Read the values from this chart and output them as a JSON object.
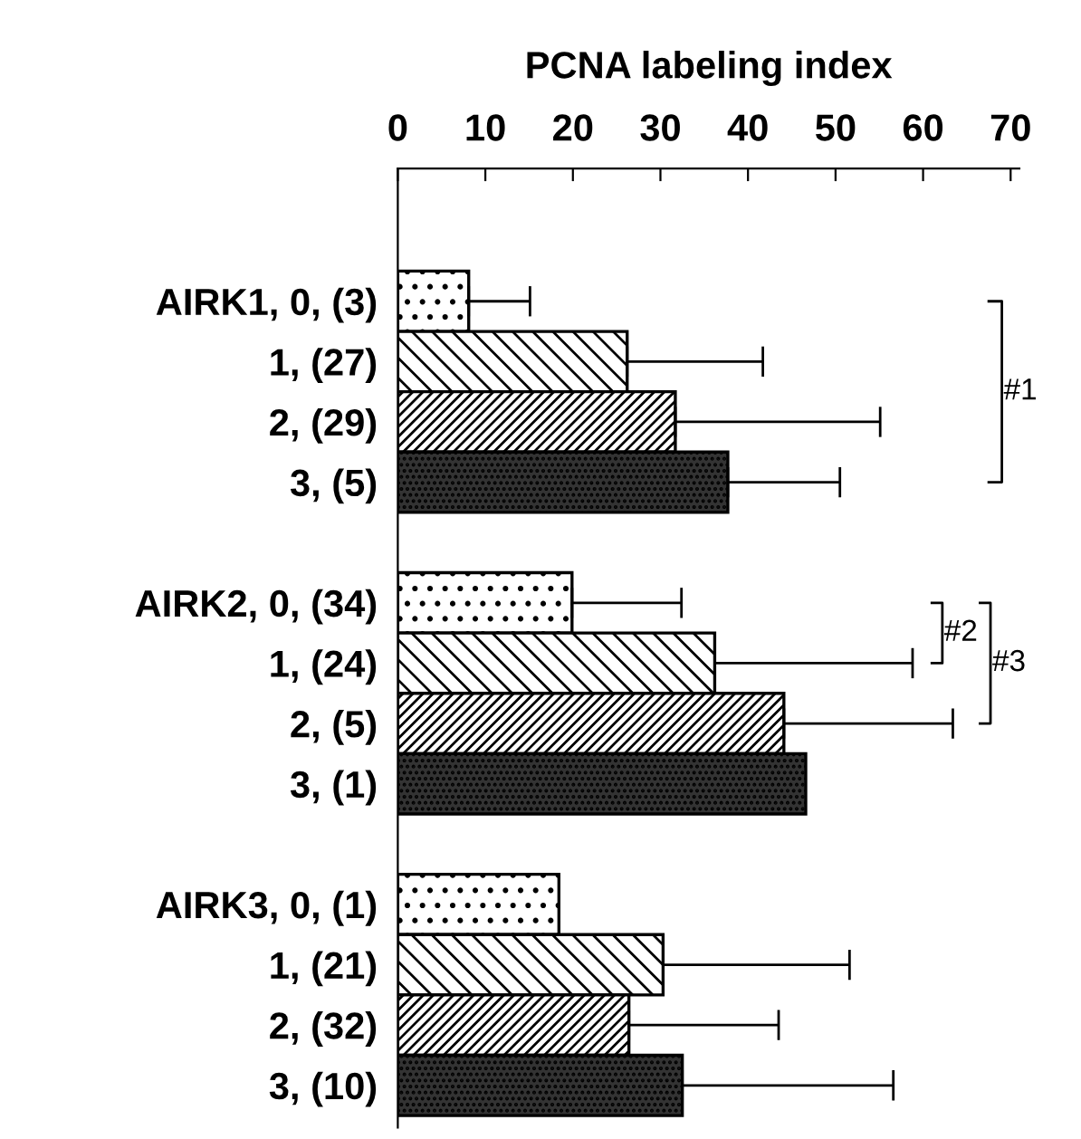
{
  "chart_data": {
    "type": "bar",
    "orientation": "horizontal",
    "xlabel": "PCNA labeling index",
    "categories": [
      "AIRK1, 0, (3)",
      "1, (27)",
      "2, (29)",
      "3, (5)",
      null,
      "AIRK2, 0, (34)",
      "1, (24)",
      "2, (5)",
      "3, (1)",
      null,
      "AIRK3, 0, (1)",
      "1, (21)",
      "2, (32)",
      "3, (10)"
    ],
    "values": [
      8.1,
      26.2,
      31.7,
      37.7,
      null,
      19.9,
      36.2,
      44.1,
      46.6,
      null,
      18.4,
      30.3,
      26.4,
      32.5
    ],
    "errors": [
      [
        8.1,
        15.1
      ],
      [
        26.2,
        41.7
      ],
      [
        31.7,
        55.1
      ],
      [
        37.7,
        50.5
      ],
      null,
      [
        19.9,
        32.4
      ],
      [
        36.2,
        58.8
      ],
      [
        44.1,
        63.4
      ],
      null,
      null,
      null,
      [
        30.3,
        51.6
      ],
      [
        26.4,
        43.5
      ],
      [
        32.5,
        56.6
      ]
    ],
    "xlim": [
      0,
      71
    ],
    "xticks": [
      0,
      10,
      20,
      30,
      40,
      50,
      60,
      70
    ],
    "annotations": [
      "#1",
      "#2",
      "#3"
    ],
    "grid": false,
    "legend": false
  }
}
